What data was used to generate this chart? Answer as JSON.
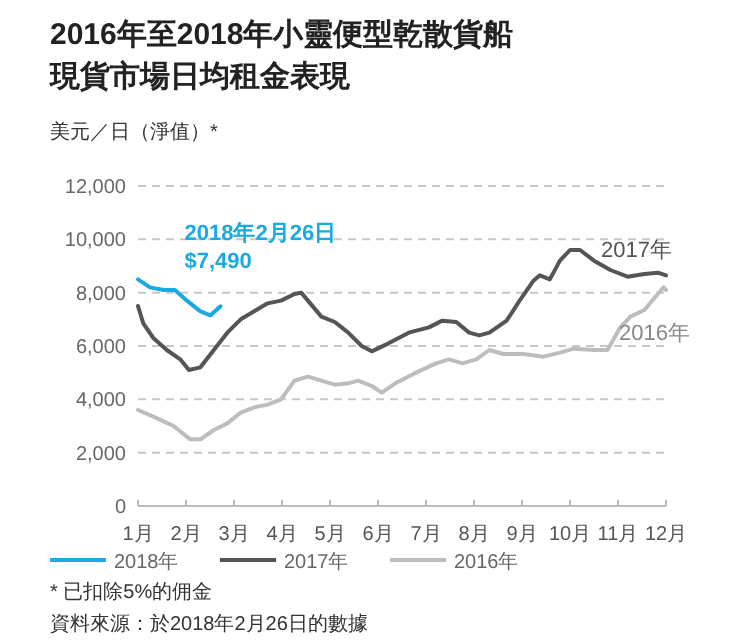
{
  "chart_data": {
    "type": "line",
    "title": "2016年至2018年小靈便型乾散貨船現貨市場日均租金表現",
    "ylabel": "美元／日（淨值）*",
    "xticks": [
      {
        "value": 1,
        "label": "1月"
      },
      {
        "value": 2,
        "label": "2月"
      },
      {
        "value": 3,
        "label": "3月"
      },
      {
        "value": 4,
        "label": "4月"
      },
      {
        "value": 5,
        "label": "5月"
      },
      {
        "value": 6,
        "label": "6月"
      },
      {
        "value": 7,
        "label": "7月"
      },
      {
        "value": 8,
        "label": "8月"
      },
      {
        "value": 9,
        "label": "9月"
      },
      {
        "value": 10,
        "label": "10月"
      },
      {
        "value": 11,
        "label": "11月"
      },
      {
        "value": 12,
        "label": "12月"
      }
    ],
    "xlim": [
      1,
      12
    ],
    "ylim": [
      0,
      12000
    ],
    "yticks": [
      0,
      {
        "value": 2000,
        "label": "2,000"
      },
      {
        "value": 4000,
        "label": "4,000"
      },
      {
        "value": 6000,
        "label": "6,000"
      },
      {
        "value": 8000,
        "label": "8,000"
      },
      {
        "value": 10000,
        "label": "10,000"
      },
      {
        "value": 12000,
        "label": "12,000"
      }
    ],
    "grid": "y",
    "legend": "bottom",
    "series": [
      {
        "name": "2018年",
        "color": "#1ba9e1",
        "x": [
          1.0,
          1.25,
          1.53,
          1.77,
          2.02,
          2.3,
          2.51,
          2.72
        ],
        "values": [
          8500,
          8200,
          8100,
          8100,
          7700,
          7300,
          7150,
          7490
        ]
      },
      {
        "name": "2017年",
        "color": "#555555",
        "x": [
          1.0,
          1.11,
          1.32,
          1.6,
          1.88,
          2.06,
          2.3,
          2.58,
          2.86,
          3.14,
          3.42,
          3.7,
          3.98,
          4.26,
          4.4,
          4.54,
          4.82,
          5.1,
          5.38,
          5.66,
          5.87,
          6.22,
          6.64,
          7.06,
          7.34,
          7.63,
          7.9,
          8.11,
          8.32,
          8.68,
          8.95,
          9.24,
          9.37,
          9.58,
          9.79,
          10.0,
          10.21,
          10.5,
          10.84,
          11.2,
          11.55,
          11.83,
          12.0
        ],
        "values": [
          7500,
          6850,
          6300,
          5850,
          5500,
          5100,
          5200,
          5850,
          6500,
          7000,
          7300,
          7600,
          7700,
          7950,
          8000,
          7700,
          7100,
          6900,
          6500,
          6000,
          5800,
          6100,
          6500,
          6700,
          6950,
          6900,
          6500,
          6400,
          6500,
          6950,
          7700,
          8450,
          8650,
          8500,
          9200,
          9600,
          9600,
          9200,
          8850,
          8600,
          8700,
          8750,
          8650
        ]
      },
      {
        "name": "2016年",
        "color": "#bdbdbd",
        "x": [
          1.0,
          1.32,
          1.74,
          2.09,
          2.3,
          2.58,
          2.86,
          3.14,
          3.42,
          3.7,
          3.98,
          4.26,
          4.54,
          4.82,
          5.1,
          5.38,
          5.59,
          5.87,
          6.08,
          6.36,
          6.79,
          7.21,
          7.48,
          7.76,
          8.05,
          8.32,
          8.61,
          9.03,
          9.45,
          9.79,
          10.08,
          10.5,
          10.78,
          11.05,
          11.26,
          11.55,
          11.83,
          11.95,
          12.0
        ],
        "values": [
          3600,
          3350,
          3000,
          2500,
          2500,
          2850,
          3100,
          3500,
          3700,
          3800,
          4000,
          4700,
          4850,
          4700,
          4550,
          4600,
          4700,
          4500,
          4250,
          4600,
          5000,
          5350,
          5500,
          5350,
          5500,
          5850,
          5700,
          5700,
          5600,
          5750,
          5900,
          5850,
          5850,
          6700,
          7100,
          7350,
          7950,
          8200,
          8100
        ]
      }
    ],
    "annotations": [
      {
        "text": "2018年2月26日\n$7,490",
        "x": 2.72,
        "y": 7490
      },
      "* 已扣除5%的佣金",
      "資料來源：於2018年2月26日的數據"
    ]
  }
}
